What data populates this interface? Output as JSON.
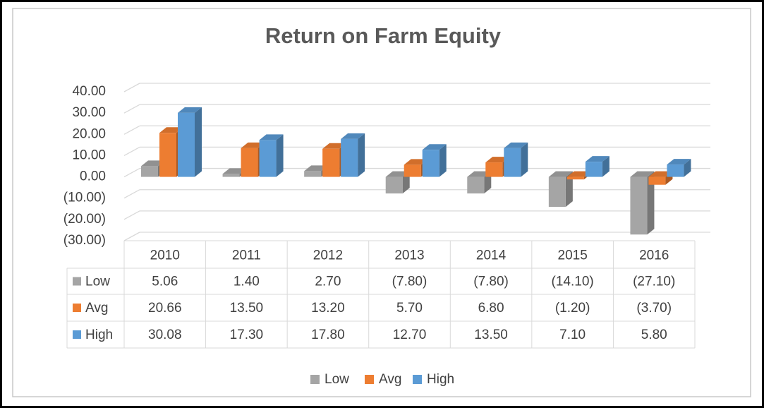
{
  "chart_data": {
    "type": "bar",
    "title": "Return on Farm Equity",
    "categories": [
      "2010",
      "2011",
      "2012",
      "2013",
      "2014",
      "2015",
      "2016"
    ],
    "series": [
      {
        "name": "Low",
        "color": "#a5a5a5",
        "values": [
          5.06,
          1.4,
          2.7,
          -7.8,
          -7.8,
          -14.1,
          -27.1
        ],
        "value_labels": [
          "5.06",
          "1.40",
          "2.70",
          "(7.80)",
          "(7.80)",
          "(14.10)",
          "(27.10)"
        ]
      },
      {
        "name": "Avg",
        "color": "#ed7d31",
        "values": [
          20.66,
          13.5,
          13.2,
          5.7,
          6.8,
          -1.2,
          -3.7
        ],
        "value_labels": [
          "20.66",
          "13.50",
          "13.20",
          "5.70",
          "6.80",
          "(1.20)",
          "(3.70)"
        ]
      },
      {
        "name": "High",
        "color": "#5b9bd5",
        "values": [
          30.08,
          17.3,
          17.8,
          12.7,
          13.5,
          7.1,
          5.8
        ],
        "value_labels": [
          "30.08",
          "17.30",
          "17.80",
          "12.70",
          "13.50",
          "7.10",
          "5.80"
        ]
      }
    ],
    "ylim": [
      -30,
      40
    ],
    "yticks": [
      {
        "value": -30,
        "label": "(30.00)"
      },
      {
        "value": -20,
        "label": "(20.00)"
      },
      {
        "value": -10,
        "label": "(10.00)"
      },
      {
        "value": 0,
        "label": "0.00"
      },
      {
        "value": 10,
        "label": "10.00"
      },
      {
        "value": 20,
        "label": "20.00"
      },
      {
        "value": 30,
        "label": "30.00"
      },
      {
        "value": 40,
        "label": "40.00"
      }
    ],
    "grid": true,
    "legend": "bottom"
  }
}
